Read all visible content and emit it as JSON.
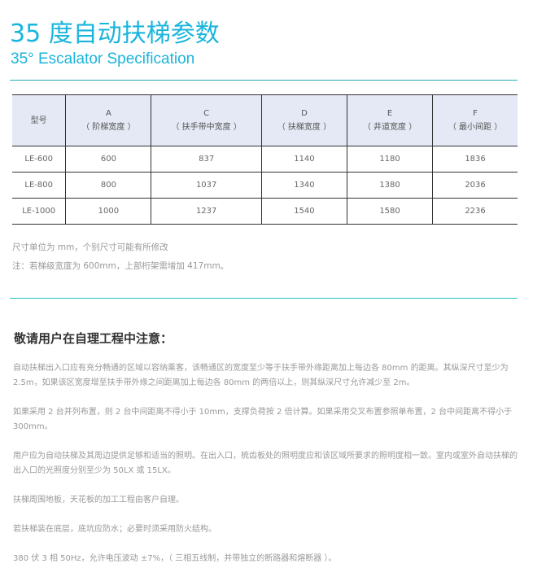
{
  "title": "35 度自动扶梯参数",
  "subtitle": "35° Escalator Specification",
  "table": {
    "headers": [
      {
        "code": "",
        "label": "型号"
      },
      {
        "code": "A",
        "label": "（ 阶梯宽度 ）"
      },
      {
        "code": "C",
        "label": "（ 扶手带中宽度 ）"
      },
      {
        "code": "D",
        "label": "（ 扶梯宽度 ）"
      },
      {
        "code": "E",
        "label": "（ 井道宽度 ）"
      },
      {
        "code": "F",
        "label": "（ 最小间距 ）"
      }
    ],
    "rows": [
      [
        "LE-600",
        "600",
        "837",
        "1140",
        "1180",
        "1836"
      ],
      [
        "LE-800",
        "800",
        "1037",
        "1340",
        "1380",
        "2036"
      ],
      [
        "LE-1000",
        "1000",
        "1237",
        "1540",
        "1580",
        "2236"
      ]
    ]
  },
  "notes": [
    "尺寸单位为 mm，个别尺寸可能有所修改",
    "注：若梯级宽度为 600mm，上部桁架需增加 417mm。"
  ],
  "heading": "敬请用户在自理工程中注意：",
  "paragraphs": [
    "自动扶梯出入口应有充分畅通的区域以容纳乘客，该畅通区的宽度至少等于扶手带外缘距离加上每边各 80mm 的距离。其纵深尺寸至少为 2.5m，如果该区宽度增至扶手带外缘之间距离加上每边各 80mm 的两倍以上，则其纵深尺寸允许减少至 2m。",
    "如果采用 2 台并列布置，则 2 台中间距离不得小于 10mm，支撑负荷按 2 倍计算。如果采用交叉布置参照单布置，2 台中间距离不得小于 300mm。",
    "用户应为自动扶梯及其周边提供足够和适当的照明。在出入口，梳齿板处的照明度应和该区域所要求的照明度相一致。室内或室外自动扶梯的出入口的光照度分别至少为 50LX 或 15LX。",
    "扶梯周围地板，天花板的加工工程由客户自理。",
    "若扶梯装在底层，底坑应防水；必要时须采用防火结构。",
    "380 伏 3 相 50Hz，允许电压波动 ±7%，（ 三相五线制，并带独立的断路器和熔断器 ）。"
  ]
}
